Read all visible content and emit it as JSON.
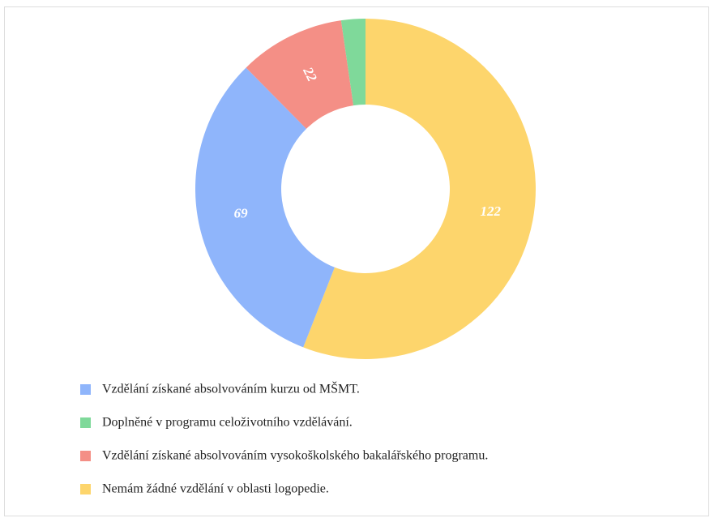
{
  "chart_data": {
    "type": "donut",
    "categories": [
      "Vzdělání získané absolvováním kurzu od MŠMT.",
      "Doplněné v programu celoživotního vzdělávání.",
      "Vzdělání získané absolvováním vysokoškolského bakalářského programu.",
      "Nemám žádné vzdělání v oblasti logopedie."
    ],
    "values": [
      69,
      5,
      22,
      122
    ],
    "colors": [
      "#8fb5fb",
      "#7fd99a",
      "#f48f86",
      "#fdd56c"
    ],
    "legend": "bottom"
  }
}
